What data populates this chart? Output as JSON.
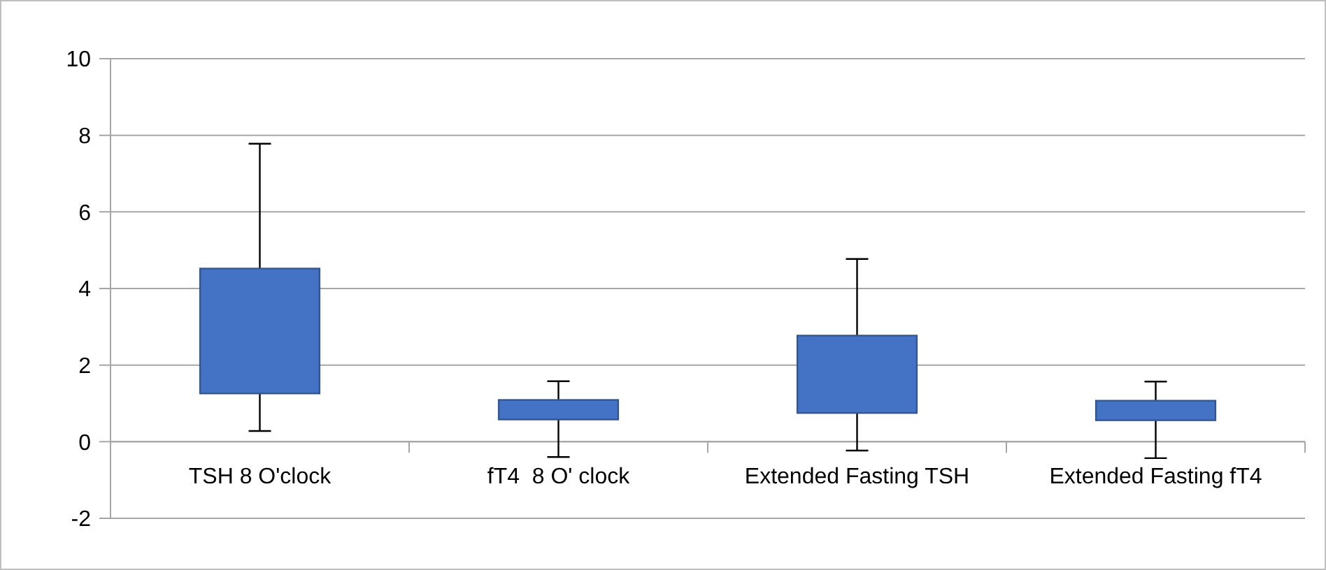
{
  "chart_data": {
    "type": "bar",
    "categories": [
      "TSH 8 O'clock",
      "fT4  8 O' clock",
      "Extended Fasting TSH",
      "Extended Fasting fT4"
    ],
    "base": [
      1.26,
      0.58,
      0.75,
      0.56
    ],
    "values": [
      3.26,
      0.51,
      2.02,
      0.51
    ],
    "errors": [
      [
        0.28,
        7.78
      ],
      [
        -0.4,
        1.58
      ],
      [
        -0.23,
        4.77
      ],
      [
        -0.43,
        1.57
      ]
    ],
    "color": "#4472c4",
    "ylim": [
      -2,
      10
    ],
    "yticks": [
      -2,
      0,
      2,
      4,
      6,
      8,
      10
    ],
    "grid": "y"
  }
}
